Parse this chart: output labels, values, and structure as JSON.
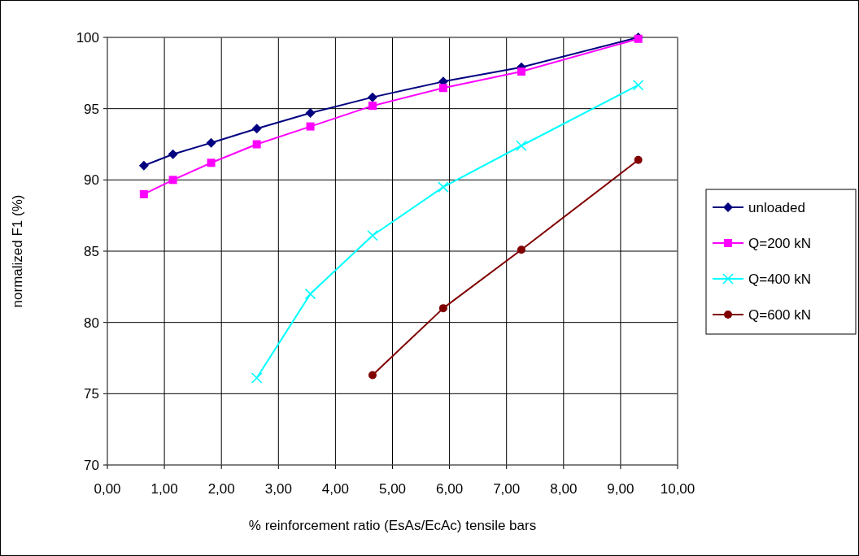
{
  "chart_data": {
    "type": "line",
    "xlabel": "% reinforcement ratio (EsAs/EcAc) tensile bars",
    "ylabel": "normalized F1 (%)",
    "xlim": [
      0,
      10
    ],
    "xticks": [
      {
        "value": 0,
        "label": "0,00"
      },
      {
        "value": 1,
        "label": "1,00"
      },
      {
        "value": 2,
        "label": "2,00"
      },
      {
        "value": 3,
        "label": "3,00"
      },
      {
        "value": 4,
        "label": "4,00"
      },
      {
        "value": 5,
        "label": "5,00"
      },
      {
        "value": 6,
        "label": "6,00"
      },
      {
        "value": 7,
        "label": "7,00"
      },
      {
        "value": 8,
        "label": "8,00"
      },
      {
        "value": 9,
        "label": "9,00"
      },
      {
        "value": 10,
        "label": "10,00"
      }
    ],
    "ylim": [
      70,
      100
    ],
    "yticks": [
      70,
      75,
      80,
      85,
      90,
      95,
      100
    ],
    "grid": true,
    "legend": "right",
    "line_style": "solid",
    "series": [
      {
        "name": "unloaded",
        "color": "#000080",
        "marker": "diamond",
        "x": [
          0.64,
          1.15,
          1.82,
          2.62,
          3.56,
          4.65,
          5.89,
          7.26,
          9.31
        ],
        "values": [
          91.0,
          91.8,
          92.6,
          93.6,
          94.7,
          95.8,
          96.9,
          97.9,
          100
        ]
      },
      {
        "name": "Q=200 kN",
        "color": "#ff00ff",
        "marker": "square",
        "x": [
          0.64,
          1.15,
          1.82,
          2.62,
          3.56,
          4.65,
          5.89,
          7.26,
          9.31
        ],
        "values": [
          89.0,
          90.0,
          91.2,
          92.5,
          93.75,
          95.2,
          96.45,
          97.6,
          99.9
        ]
      },
      {
        "name": "Q=400 kN",
        "color": "#00ffff",
        "marker": "cross",
        "x": [
          2.62,
          3.56,
          4.65,
          5.89,
          7.26,
          9.31
        ],
        "values": [
          76.1,
          82.0,
          86.1,
          89.5,
          92.4,
          96.65
        ]
      },
      {
        "name": "Q=600 kN",
        "color": "#800000",
        "marker": "circle",
        "x": [
          4.65,
          5.89,
          7.26,
          9.31
        ],
        "values": [
          76.3,
          81.0,
          85.1,
          91.4
        ]
      }
    ]
  }
}
